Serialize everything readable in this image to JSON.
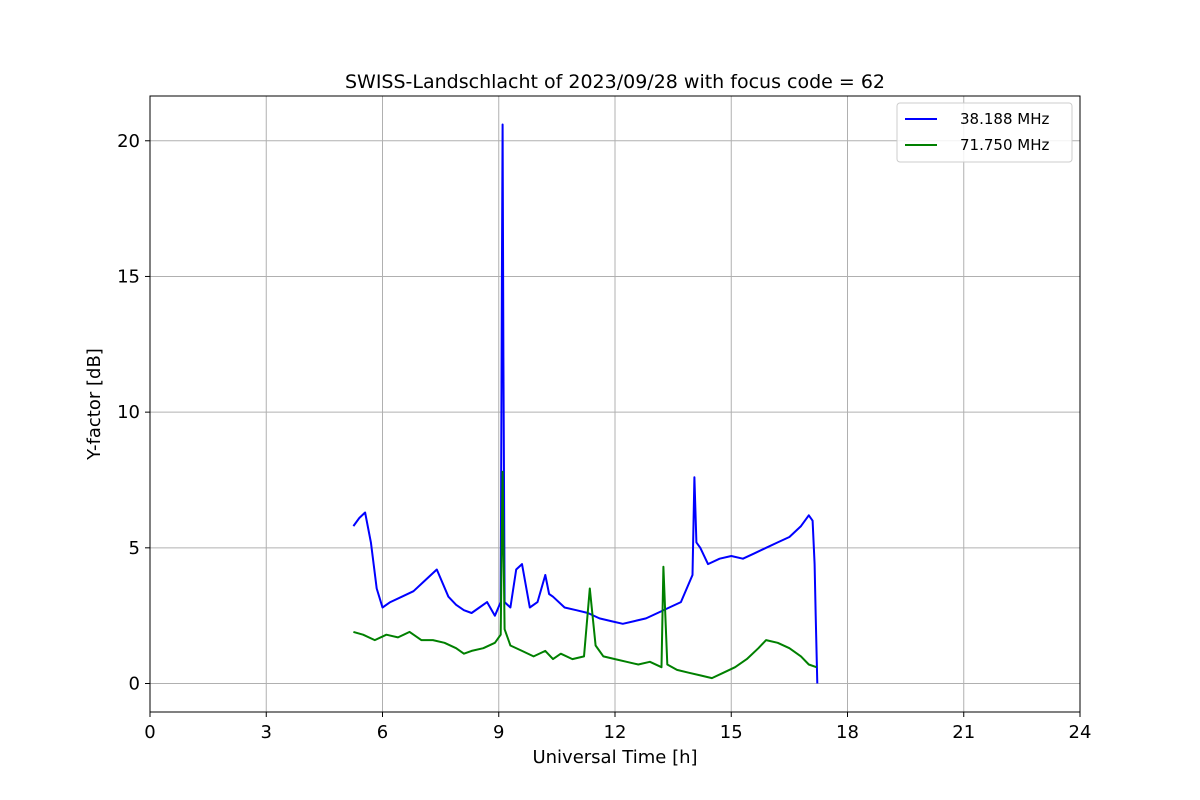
{
  "chart_data": {
    "type": "line",
    "title": "SWISS-Landschlacht of 2023/09/28 with focus code = 62",
    "xlabel": "Universal Time [h]",
    "ylabel": "Y-factor [dB]",
    "xlim": [
      0,
      24
    ],
    "ylim": [
      -1.05,
      21.65
    ],
    "xticks": [
      0,
      3,
      6,
      9,
      12,
      15,
      18,
      21,
      24
    ],
    "yticks": [
      0,
      5,
      10,
      15,
      20
    ],
    "grid": true,
    "legend_position": "top-right",
    "series": [
      {
        "name": "38.188 MHz",
        "color": "#0000ff",
        "x": [
          5.25,
          5.4,
          5.55,
          5.7,
          5.85,
          6.0,
          6.2,
          6.5,
          6.8,
          7.1,
          7.4,
          7.7,
          7.9,
          8.1,
          8.3,
          8.5,
          8.7,
          8.9,
          9.05,
          9.08,
          9.1,
          9.12,
          9.15,
          9.3,
          9.45,
          9.6,
          9.8,
          10.0,
          10.2,
          10.3,
          10.4,
          10.7,
          11.0,
          11.3,
          11.6,
          11.9,
          12.2,
          12.5,
          12.8,
          13.1,
          13.4,
          13.7,
          14.0,
          14.05,
          14.1,
          14.2,
          14.4,
          14.7,
          15.0,
          15.3,
          15.6,
          15.9,
          16.2,
          16.5,
          16.8,
          17.0,
          17.1,
          17.15,
          17.18,
          17.22
        ],
        "y": [
          5.8,
          6.1,
          6.3,
          5.2,
          3.5,
          2.8,
          3.0,
          3.2,
          3.4,
          3.8,
          4.2,
          3.2,
          2.9,
          2.7,
          2.6,
          2.8,
          3.0,
          2.5,
          3.0,
          15.0,
          20.6,
          12.0,
          3.0,
          2.8,
          4.2,
          4.4,
          2.8,
          3.0,
          4.0,
          3.3,
          3.2,
          2.8,
          2.7,
          2.6,
          2.4,
          2.3,
          2.2,
          2.3,
          2.4,
          2.6,
          2.8,
          3.0,
          4.0,
          7.6,
          5.2,
          5.0,
          4.4,
          4.6,
          4.7,
          4.6,
          4.8,
          5.0,
          5.2,
          5.4,
          5.8,
          6.2,
          6.0,
          4.4,
          2.5,
          0.0
        ]
      },
      {
        "name": "71.750 MHz",
        "color": "#008000",
        "x": [
          5.25,
          5.5,
          5.8,
          6.1,
          6.4,
          6.7,
          7.0,
          7.3,
          7.6,
          7.9,
          8.1,
          8.3,
          8.6,
          8.9,
          9.05,
          9.1,
          9.15,
          9.3,
          9.6,
          9.9,
          10.2,
          10.4,
          10.6,
          10.9,
          11.2,
          11.35,
          11.5,
          11.7,
          12.0,
          12.3,
          12.6,
          12.9,
          13.2,
          13.25,
          13.35,
          13.6,
          13.9,
          14.2,
          14.5,
          14.8,
          15.1,
          15.4,
          15.7,
          15.9,
          16.2,
          16.5,
          16.8,
          17.0,
          17.2
        ],
        "y": [
          1.9,
          1.8,
          1.6,
          1.8,
          1.7,
          1.9,
          1.6,
          1.6,
          1.5,
          1.3,
          1.1,
          1.2,
          1.3,
          1.5,
          1.8,
          7.8,
          2.0,
          1.4,
          1.2,
          1.0,
          1.2,
          0.9,
          1.1,
          0.9,
          1.0,
          3.5,
          1.4,
          1.0,
          0.9,
          0.8,
          0.7,
          0.8,
          0.6,
          4.3,
          0.7,
          0.5,
          0.4,
          0.3,
          0.2,
          0.4,
          0.6,
          0.9,
          1.3,
          1.6,
          1.5,
          1.3,
          1.0,
          0.7,
          0.6
        ]
      }
    ]
  }
}
